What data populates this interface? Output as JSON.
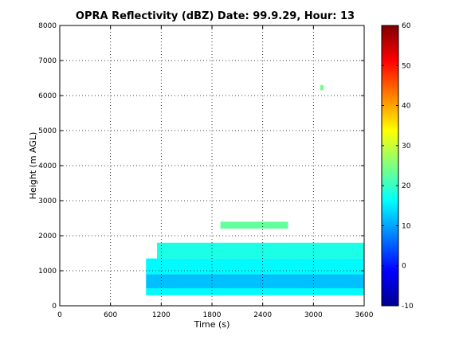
{
  "chart_data": {
    "type": "heatmap",
    "title": "OPRA Reflectivity (dBZ)  Date: 99.9.29, Hour: 13",
    "xlabel": "Time (s)",
    "ylabel": "Height (m AGL)",
    "xlim": [
      0,
      3600
    ],
    "ylim": [
      0,
      8000
    ],
    "x_ticks": [
      0,
      600,
      1200,
      1800,
      2400,
      3000,
      3600
    ],
    "y_ticks": [
      0,
      1000,
      2000,
      3000,
      4000,
      5000,
      6000,
      7000,
      8000
    ],
    "grid": true,
    "colorbar": {
      "colormap": "jet",
      "range": [
        -10,
        60
      ],
      "ticks": [
        -10,
        0,
        10,
        20,
        30,
        40,
        50,
        60
      ]
    },
    "layers": [
      {
        "x_start": 1020,
        "x_end": 3600,
        "y_start": 300,
        "y_end": 500,
        "value": 16
      },
      {
        "x_start": 1020,
        "x_end": 3600,
        "y_start": 500,
        "y_end": 900,
        "value": 12
      },
      {
        "x_start": 1020,
        "x_end": 3600,
        "y_start": 900,
        "y_end": 1350,
        "value": 16
      },
      {
        "x_start": 1150,
        "x_end": 3600,
        "y_start": 1350,
        "y_end": 1800,
        "value": 18
      },
      {
        "x_start": 1900,
        "x_end": 2700,
        "y_start": 2200,
        "y_end": 2400,
        "value": 23
      },
      {
        "x_start": 3080,
        "x_end": 3120,
        "y_start": 6150,
        "y_end": 6300,
        "value": 24
      }
    ]
  }
}
